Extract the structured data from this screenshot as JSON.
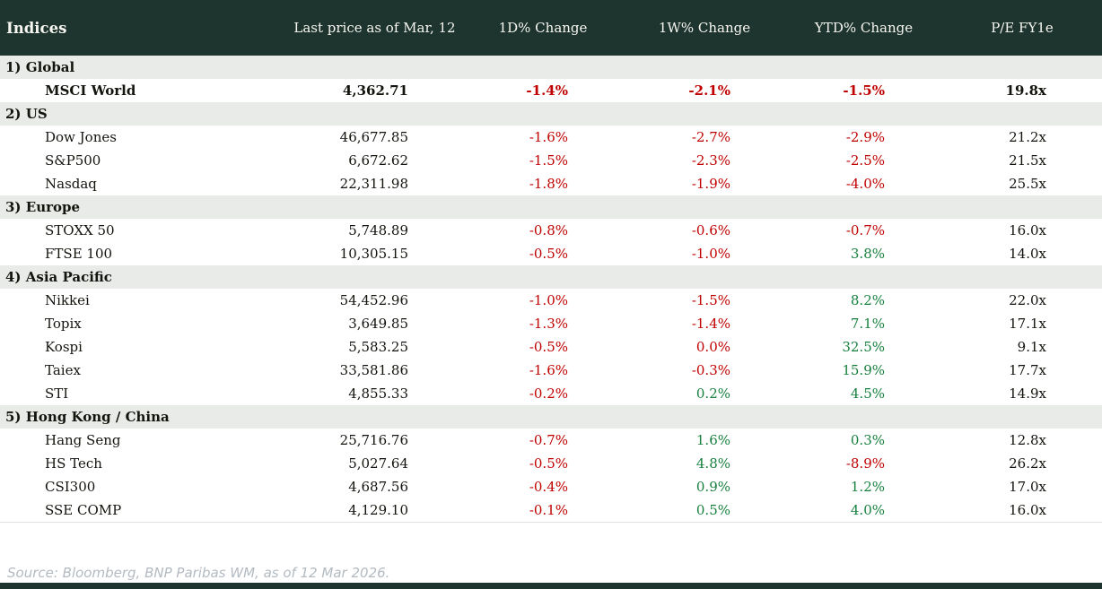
{
  "colors": {
    "header_bg": "#1e342e",
    "header_text": "#f7f6f1",
    "section_bg": "#e8ebe7",
    "text": "#14140f",
    "negative": "#c00000",
    "positive": "#17803e",
    "source_text": "#b3bac1",
    "table_border": "#dfe3df"
  },
  "chart_data": {
    "type": "table",
    "title": "Indices",
    "columns": [
      "Indices",
      "Last price as of Mar, 12",
      "1D% Change",
      "1W% Change",
      "YTD% Change",
      "P/E FY1e"
    ],
    "sections": [
      {
        "label": "1) Global",
        "rows": [
          {
            "name": "MSCI World",
            "bold": true,
            "price": "4,362.71",
            "changes": [
              {
                "value": "-1.4%",
                "tone": "negative"
              },
              {
                "value": "-2.1%",
                "tone": "negative"
              },
              {
                "value": "-1.5%",
                "tone": "negative"
              }
            ],
            "pe": "19.8x"
          }
        ]
      },
      {
        "label": "2) US",
        "rows": [
          {
            "name": "Dow Jones",
            "price": "46,677.85",
            "changes": [
              {
                "value": "-1.6%",
                "tone": "negative"
              },
              {
                "value": "-2.7%",
                "tone": "negative"
              },
              {
                "value": "-2.9%",
                "tone": "negative"
              }
            ],
            "pe": "21.2x"
          },
          {
            "name": "S&P500",
            "price": "6,672.62",
            "changes": [
              {
                "value": "-1.5%",
                "tone": "negative"
              },
              {
                "value": "-2.3%",
                "tone": "negative"
              },
              {
                "value": "-2.5%",
                "tone": "negative"
              }
            ],
            "pe": "21.5x"
          },
          {
            "name": "Nasdaq",
            "price": "22,311.98",
            "changes": [
              {
                "value": "-1.8%",
                "tone": "negative"
              },
              {
                "value": "-1.9%",
                "tone": "negative"
              },
              {
                "value": "-4.0%",
                "tone": "negative"
              }
            ],
            "pe": "25.5x"
          }
        ]
      },
      {
        "label": "3) Europe",
        "rows": [
          {
            "name": "STOXX 50",
            "price": "5,748.89",
            "changes": [
              {
                "value": "-0.8%",
                "tone": "negative"
              },
              {
                "value": "-0.6%",
                "tone": "negative"
              },
              {
                "value": "-0.7%",
                "tone": "negative"
              }
            ],
            "pe": "16.0x"
          },
          {
            "name": "FTSE 100",
            "price": "10,305.15",
            "changes": [
              {
                "value": "-0.5%",
                "tone": "negative"
              },
              {
                "value": "-1.0%",
                "tone": "negative"
              },
              {
                "value": "3.8%",
                "tone": "positive"
              }
            ],
            "pe": "14.0x"
          }
        ]
      },
      {
        "label": "4) Asia Pacific",
        "rows": [
          {
            "name": "Nikkei",
            "price": "54,452.96",
            "changes": [
              {
                "value": "-1.0%",
                "tone": "negative"
              },
              {
                "value": "-1.5%",
                "tone": "negative"
              },
              {
                "value": "8.2%",
                "tone": "positive"
              }
            ],
            "pe": "22.0x"
          },
          {
            "name": "Topix",
            "price": "3,649.85",
            "changes": [
              {
                "value": "-1.3%",
                "tone": "negative"
              },
              {
                "value": "-1.4%",
                "tone": "negative"
              },
              {
                "value": "7.1%",
                "tone": "positive"
              }
            ],
            "pe": "17.1x"
          },
          {
            "name": "Kospi",
            "price": "5,583.25",
            "changes": [
              {
                "value": "-0.5%",
                "tone": "negative"
              },
              {
                "value": "0.0%",
                "tone": "negative"
              },
              {
                "value": "32.5%",
                "tone": "positive"
              }
            ],
            "pe": "9.1x"
          },
          {
            "name": "Taiex",
            "price": "33,581.86",
            "changes": [
              {
                "value": "-1.6%",
                "tone": "negative"
              },
              {
                "value": "-0.3%",
                "tone": "negative"
              },
              {
                "value": "15.9%",
                "tone": "positive"
              }
            ],
            "pe": "17.7x"
          },
          {
            "name": "STI",
            "price": "4,855.33",
            "changes": [
              {
                "value": "-0.2%",
                "tone": "negative"
              },
              {
                "value": "0.2%",
                "tone": "positive"
              },
              {
                "value": "4.5%",
                "tone": "positive"
              }
            ],
            "pe": "14.9x"
          }
        ]
      },
      {
        "label": "5) Hong Kong / China",
        "rows": [
          {
            "name": "Hang Seng",
            "price": "25,716.76",
            "changes": [
              {
                "value": "-0.7%",
                "tone": "negative"
              },
              {
                "value": "1.6%",
                "tone": "positive"
              },
              {
                "value": "0.3%",
                "tone": "positive"
              }
            ],
            "pe": "12.8x"
          },
          {
            "name": "HS Tech",
            "price": "5,027.64",
            "changes": [
              {
                "value": "-0.5%",
                "tone": "negative"
              },
              {
                "value": "4.8%",
                "tone": "positive"
              },
              {
                "value": "-8.9%",
                "tone": "negative"
              }
            ],
            "pe": "26.2x"
          },
          {
            "name": "CSI300",
            "price": "4,687.56",
            "changes": [
              {
                "value": "-0.4%",
                "tone": "negative"
              },
              {
                "value": "0.9%",
                "tone": "positive"
              },
              {
                "value": "1.2%",
                "tone": "positive"
              }
            ],
            "pe": "17.0x"
          },
          {
            "name": "SSE COMP",
            "price": "4,129.10",
            "changes": [
              {
                "value": "-0.1%",
                "tone": "negative"
              },
              {
                "value": "0.5%",
                "tone": "positive"
              },
              {
                "value": "4.0%",
                "tone": "positive"
              }
            ],
            "pe": "16.0x"
          }
        ]
      }
    ],
    "source": "Source: Bloomberg, BNP Paribas WM, as of 12 Mar 2026."
  }
}
